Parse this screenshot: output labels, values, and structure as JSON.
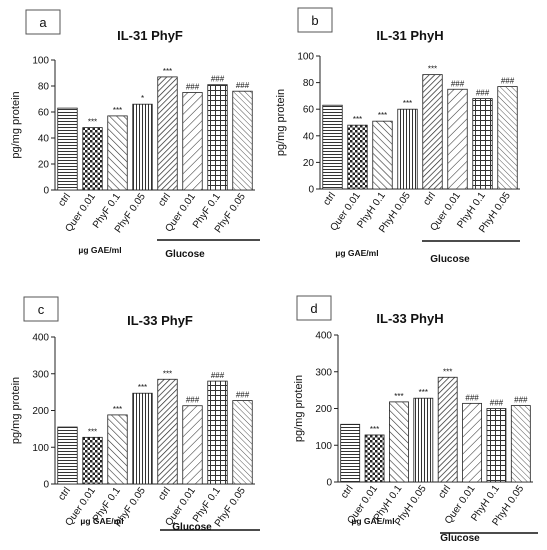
{
  "patterns": {
    "ctrl": "hline",
    "quer": "checker",
    "phy01": "hatch-left",
    "phy005": "vline",
    "glu_ctrl": "hatch-dense",
    "glu_quer": "hatch-right",
    "glu_phy01": "grid",
    "glu_phy005": "hatch-right-fine"
  },
  "chart_data": [
    {
      "panel_label": "a",
      "type": "bar",
      "title": "IL-31 PhyF",
      "ylabel": "pg/mg protein",
      "ylim": [
        0,
        100
      ],
      "yticks": [
        "0",
        "20",
        "40",
        "60",
        "80",
        "100"
      ],
      "categories": [
        "ctrl",
        "Quer 0.01",
        "PhyF 0.1",
        "PhyF 0.05",
        "ctrl",
        "Quer 0.01",
        "PhyF 0.1",
        "PhyF 0.05"
      ],
      "values": [
        63,
        48,
        57,
        66,
        87,
        75,
        81,
        76
      ],
      "significance": [
        "",
        "***",
        "***",
        "*",
        "***",
        "###",
        "###",
        "###"
      ],
      "group_label_left": "µg GAE/ml",
      "group_label_right": "Glucose"
    },
    {
      "panel_label": "b",
      "type": "bar",
      "title": "IL-31 PhyH",
      "ylabel": "pg/mg protein",
      "ylim": [
        0,
        100
      ],
      "yticks": [
        "0",
        "20",
        "40",
        "60",
        "80",
        "100"
      ],
      "categories": [
        "ctrl",
        "Quer 0.01",
        "PhyH 0.1",
        "PhyH 0.05",
        "ctrl",
        "Quer 0.01",
        "PhyH 0.1",
        "PhyH 0.05"
      ],
      "values": [
        63,
        48,
        51,
        60,
        86,
        75,
        68,
        77
      ],
      "significance": [
        "",
        "***",
        "***",
        "***",
        "***",
        "###",
        "###",
        "###"
      ],
      "group_label_left": "µg GAE/ml",
      "group_label_right": "Glucose"
    },
    {
      "panel_label": "c",
      "type": "bar",
      "title": "IL-33 PhyF",
      "ylabel": "pg/mg protein",
      "ylim": [
        0,
        400
      ],
      "yticks": [
        "0",
        "100",
        "200",
        "300",
        "400"
      ],
      "categories": [
        "ctrl",
        "Quer 0.01",
        "PhyF 0.1",
        "PhyF 0.05",
        "ctrl",
        "Quer 0.01",
        "PhyF 0.1",
        "PhyF 0.05"
      ],
      "values": [
        155,
        127,
        188,
        247,
        285,
        213,
        280,
        227
      ],
      "significance": [
        "",
        "***",
        "***",
        "***",
        "***",
        "###",
        "###",
        "###"
      ],
      "group_label_left": "µg GAE/ml",
      "group_label_right": "Glucose"
    },
    {
      "panel_label": "d",
      "type": "bar",
      "title": "IL-33 PhyH",
      "ylabel": "pg/mg protein",
      "ylim": [
        0,
        400
      ],
      "yticks": [
        "0",
        "100",
        "200",
        "300",
        "400"
      ],
      "categories": [
        "ctrl",
        "Quer 0.01",
        "PhyH 0.1",
        "PhyH 0.05",
        "ctrl",
        "Quer 0.01",
        "PhyH 0.1",
        "PhyH 0.05"
      ],
      "values": [
        157,
        128,
        218,
        228,
        285,
        214,
        200,
        208
      ],
      "significance": [
        "",
        "***",
        "***",
        "***",
        "***",
        "###",
        "###",
        "###"
      ],
      "group_label_left": "µg GAE/ml",
      "group_label_right": "Glucose"
    }
  ]
}
